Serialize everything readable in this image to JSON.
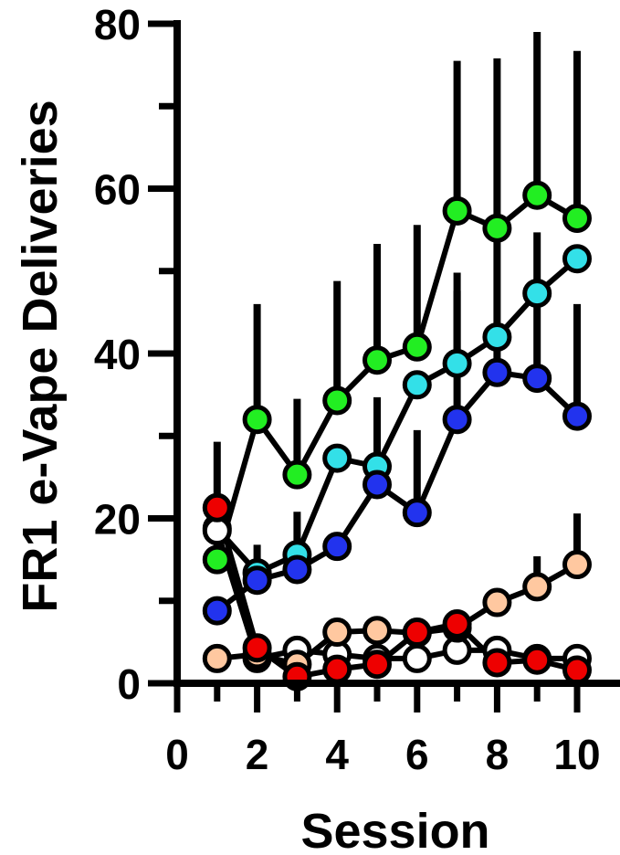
{
  "chart_data": {
    "type": "line",
    "title": "",
    "xlabel": "Session",
    "ylabel": "FR1 e-Vape  Deliveries",
    "xlim": [
      0,
      10
    ],
    "ylim": [
      0,
      80
    ],
    "x_ticks": [
      0,
      2,
      4,
      6,
      8,
      10
    ],
    "y_ticks": [
      0,
      20,
      40,
      60,
      80
    ],
    "x_tick_labels": [
      "0",
      "2",
      "4",
      "6",
      "8",
      "10"
    ],
    "y_tick_labels": [
      "0",
      "20",
      "40",
      "60",
      "80"
    ],
    "grid": false,
    "legend": "none",
    "x": [
      1,
      2,
      3,
      4,
      5,
      6,
      7,
      8,
      9,
      10
    ],
    "series": [
      {
        "color": "#22ee22",
        "values": [
          15,
          32,
          25.3,
          34.3,
          39.2,
          40.8,
          57.3,
          55.2,
          59.2,
          56.4
        ],
        "error": [
          6,
          14,
          9.2,
          14.5,
          14.1,
          14.8,
          18.2,
          20.6,
          19.8,
          20.3
        ]
      },
      {
        "color": "#33e0e8",
        "values": [
          18.8,
          13.4,
          15.6,
          27.3,
          26.3,
          36.2,
          38.8,
          42,
          47.3,
          51.5
        ],
        "error": [
          0,
          3.4,
          5.2,
          0,
          8.4,
          0,
          8.8,
          0,
          0,
          0
        ]
      },
      {
        "color": "#2233ee",
        "values": [
          8.8,
          12.5,
          13.8,
          16.6,
          24.1,
          20.7,
          32,
          37.7,
          37,
          32.4
        ],
        "error": [
          0,
          0,
          0,
          0,
          0,
          10,
          17.8,
          19,
          17.7,
          13.6
        ]
      },
      {
        "color": "#ffffff",
        "values": [
          18.5,
          3,
          4,
          3.5,
          3,
          3,
          4,
          4,
          3,
          3
        ],
        "error": [
          0,
          0,
          0,
          0,
          0,
          0,
          0,
          0,
          0,
          0
        ]
      },
      {
        "color": "#ffc8a0",
        "values": [
          3,
          3.5,
          2.3,
          6.2,
          6.4,
          6.1,
          6.7,
          9.8,
          11.7,
          14.4
        ],
        "error": [
          0,
          0,
          0,
          0,
          0,
          0,
          0,
          0,
          3.7,
          6.2
        ]
      },
      {
        "color": "#ee0000",
        "values": [
          21.3,
          4.3,
          0.8,
          1.7,
          2.3,
          6.2,
          7.2,
          2.5,
          2.8,
          1.6
        ],
        "error": [
          8,
          0,
          0,
          0,
          0,
          0,
          0,
          0,
          0,
          0
        ]
      }
    ]
  }
}
